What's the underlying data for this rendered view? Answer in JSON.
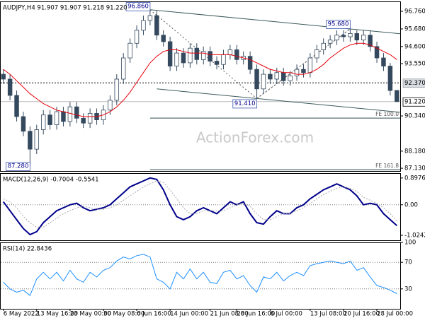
{
  "chart_data": [
    {
      "type": "candlestick",
      "title": "AUDJPY,H4 91.907 91.907 91.218 91.220",
      "color": "#34495e",
      "open": [
        92.9,
        92.6,
        91.6,
        90.3,
        89.4,
        88.3,
        89.5,
        90.4,
        89.8,
        90.6,
        90.0,
        90.9,
        90.2,
        89.9,
        90.5,
        90.1,
        90.7,
        91.3,
        92.6,
        93.9,
        94.8,
        95.6,
        96.2,
        96.5,
        95.3,
        94.9,
        93.4,
        94.2,
        93.6,
        94.5,
        93.8,
        94.3,
        93.7,
        93.5,
        94.1,
        94.4,
        93.8,
        94.0,
        93.2,
        92.0,
        92.9,
        92.6,
        93.0,
        92.5,
        92.8,
        93.2,
        93.0,
        93.9,
        94.4,
        94.8,
        95.0,
        95.3,
        95.2,
        95.4,
        95.0,
        95.3,
        94.6,
        93.9,
        93.4,
        91.907
      ],
      "high": [
        93.2,
        92.9,
        91.9,
        90.6,
        89.7,
        89.8,
        90.7,
        90.7,
        90.9,
        90.9,
        91.2,
        91.2,
        90.5,
        90.8,
        90.8,
        91.0,
        91.6,
        92.9,
        94.2,
        95.1,
        95.9,
        96.5,
        96.86,
        96.8,
        95.6,
        95.2,
        94.5,
        94.5,
        94.8,
        94.8,
        94.6,
        94.6,
        94.0,
        94.4,
        94.7,
        94.7,
        94.3,
        94.3,
        93.5,
        93.2,
        93.2,
        93.3,
        93.3,
        93.1,
        93.5,
        93.5,
        94.2,
        94.7,
        95.1,
        95.3,
        95.6,
        95.6,
        95.68,
        95.6,
        95.6,
        95.6,
        94.9,
        94.2,
        93.6,
        91.907
      ],
      "low": [
        92.3,
        91.3,
        90.0,
        89.1,
        87.28,
        88.0,
        89.2,
        89.5,
        89.5,
        89.7,
        89.7,
        89.9,
        89.6,
        89.6,
        89.8,
        89.8,
        90.4,
        91.0,
        92.3,
        93.6,
        94.5,
        95.3,
        95.9,
        95.0,
        94.6,
        93.1,
        93.1,
        93.3,
        93.3,
        93.5,
        93.5,
        93.4,
        93.2,
        93.2,
        93.8,
        93.5,
        93.5,
        92.9,
        91.41,
        91.7,
        92.3,
        92.3,
        92.2,
        92.2,
        92.5,
        92.7,
        92.7,
        93.6,
        94.1,
        94.5,
        94.7,
        94.9,
        94.9,
        94.7,
        94.7,
        94.3,
        93.6,
        93.1,
        91.6,
        91.218
      ],
      "close": [
        92.6,
        91.6,
        90.3,
        89.4,
        88.3,
        89.5,
        90.4,
        89.8,
        90.6,
        90.0,
        90.9,
        90.2,
        89.9,
        90.5,
        90.1,
        90.7,
        91.3,
        92.6,
        93.9,
        94.8,
        95.6,
        96.2,
        96.5,
        95.3,
        94.9,
        93.4,
        94.2,
        93.6,
        94.5,
        93.8,
        94.3,
        93.7,
        93.5,
        94.1,
        94.4,
        93.8,
        94.0,
        93.2,
        92.0,
        92.9,
        92.6,
        93.0,
        92.5,
        92.8,
        93.2,
        93.0,
        93.9,
        94.4,
        94.8,
        95.0,
        95.3,
        95.2,
        95.4,
        95.0,
        95.3,
        94.6,
        93.9,
        93.4,
        91.9,
        91.22
      ],
      "overlay": {
        "color": "#e8000b",
        "values": [
          93.2,
          92.9,
          92.5,
          92.1,
          91.7,
          91.4,
          91.1,
          90.9,
          90.7,
          90.6,
          90.5,
          90.4,
          90.3,
          90.3,
          90.3,
          90.4,
          90.6,
          90.9,
          91.3,
          91.8,
          92.4,
          93.0,
          93.6,
          94.0,
          94.3,
          94.4,
          94.4,
          94.3,
          94.2,
          94.2,
          94.2,
          94.1,
          94.1,
          94.1,
          94.1,
          94.0,
          93.9,
          93.8,
          93.6,
          93.4,
          93.2,
          93.1,
          93.0,
          93.0,
          92.9,
          92.9,
          93.0,
          93.2,
          93.5,
          93.9,
          94.2,
          94.5,
          94.7,
          94.8,
          94.8,
          94.7,
          94.5,
          94.3,
          94.1,
          93.8
        ]
      },
      "ylim": [
        86.96,
        97.37
      ],
      "yticks": [
        {
          "value": 96.76,
          "label": "96.760"
        },
        {
          "value": 95.68,
          "label": "95.680"
        },
        {
          "value": 94.6,
          "label": "94.600"
        },
        {
          "value": 93.55,
          "label": "93.550"
        },
        {
          "value": 90.34,
          "label": "90.340"
        },
        {
          "value": 88.18,
          "label": "88.180"
        },
        {
          "value": 87.13,
          "label": "87.130"
        }
      ],
      "annotations": [
        {
          "text": "96.860",
          "value": 96.86
        },
        {
          "text": "87.280",
          "value": 87.28
        },
        {
          "text": "91.410",
          "value": 91.41
        },
        {
          "text": "95.680",
          "value": 95.68
        }
      ],
      "hline": {
        "label": "92.370",
        "value": 92.37
      },
      "current": {
        "label": "91.220",
        "value": 91.22
      },
      "fe_levels": [
        {
          "label": "FE 100.0",
          "value": 90.21
        },
        {
          "label": "FE 161.8",
          "value": 87.04
        }
      ],
      "watermark": "ActionForex.com"
    },
    {
      "type": "line",
      "title": "MACD(12,26,9) -0.7004 -0.5541",
      "series": [
        {
          "color": "#00008b",
          "width": 2,
          "values": [
            0.1,
            -0.2,
            -0.5,
            -0.8,
            -1.0,
            -0.9,
            -0.6,
            -0.4,
            -0.2,
            -0.1,
            0.0,
            0.05,
            -0.1,
            -0.2,
            -0.15,
            -0.1,
            0.0,
            0.2,
            0.4,
            0.6,
            0.7,
            0.8,
            0.9,
            0.85,
            0.5,
            0.0,
            -0.4,
            -0.5,
            -0.4,
            -0.2,
            -0.1,
            -0.2,
            -0.3,
            -0.1,
            0.1,
            0.0,
            0.1,
            -0.3,
            -0.6,
            -0.65,
            -0.4,
            -0.2,
            -0.3,
            -0.3,
            -0.1,
            0.0,
            0.2,
            0.35,
            0.5,
            0.6,
            0.7,
            0.6,
            0.5,
            0.3,
            0.0,
            0.05,
            0.0,
            -0.3,
            -0.5,
            -0.7004
          ]
        },
        {
          "color": "#a9a9a9",
          "width": 1,
          "dashed": true,
          "values": [
            0.2,
            0.1,
            -0.1,
            -0.4,
            -0.6,
            -0.75,
            -0.75,
            -0.6,
            -0.45,
            -0.3,
            -0.2,
            -0.1,
            -0.05,
            -0.1,
            -0.15,
            -0.15,
            -0.1,
            0.0,
            0.15,
            0.3,
            0.45,
            0.6,
            0.7,
            0.8,
            0.75,
            0.5,
            0.2,
            -0.1,
            -0.3,
            -0.3,
            -0.2,
            -0.2,
            -0.2,
            -0.2,
            -0.1,
            0.0,
            0.05,
            -0.05,
            -0.3,
            -0.5,
            -0.5,
            -0.4,
            -0.3,
            -0.3,
            -0.2,
            -0.1,
            0.05,
            0.2,
            0.35,
            0.45,
            0.55,
            0.6,
            0.55,
            0.45,
            0.25,
            0.15,
            0.05,
            -0.1,
            -0.3,
            -0.5541
          ]
        }
      ],
      "ylim": [
        -1.19,
        1.06
      ],
      "yticks": [
        0.8976,
        {
          "value": 0,
          "label": "0.00"
        },
        -1.0242
      ],
      "levels": [
        0
      ]
    },
    {
      "type": "line",
      "title": "RSI(14) 22.8436",
      "categories": [
        "6 May 2022",
        null,
        null,
        null,
        null,
        "13 May 16:00",
        null,
        null,
        null,
        null,
        "23 May 00:00",
        null,
        null,
        null,
        null,
        "30 May 08:00",
        null,
        null,
        null,
        null,
        "6 Jun 16:00",
        null,
        null,
        null,
        null,
        "14 Jun 00:00",
        null,
        null,
        null,
        null,
        null,
        "21 Jun 08:00",
        null,
        null,
        null,
        "28 Jun 16:00",
        null,
        null,
        null,
        null,
        "6 Jul 00:00",
        null,
        null,
        null,
        null,
        null,
        "13 Jul 08:00",
        null,
        null,
        null,
        null,
        "20 Jul 16:00",
        null,
        null,
        null,
        null,
        "28 Jul 00:00",
        null,
        null,
        null
      ],
      "series": [
        {
          "color": "#1e90ff",
          "width": 1,
          "values": [
            40,
            30,
            25,
            28,
            20,
            45,
            55,
            45,
            55,
            42,
            58,
            45,
            40,
            55,
            48,
            58,
            62,
            72,
            78,
            75,
            80,
            82,
            78,
            45,
            40,
            30,
            55,
            45,
            60,
            45,
            55,
            40,
            38,
            55,
            58,
            45,
            50,
            35,
            25,
            48,
            45,
            55,
            42,
            50,
            55,
            50,
            65,
            68,
            70,
            72,
            70,
            68,
            72,
            58,
            62,
            48,
            35,
            32,
            28,
            22.8436
          ]
        }
      ],
      "ylim": [
        0,
        100
      ],
      "yticks": [
        100,
        70,
        30
      ],
      "levels": [
        70,
        30
      ]
    }
  ]
}
